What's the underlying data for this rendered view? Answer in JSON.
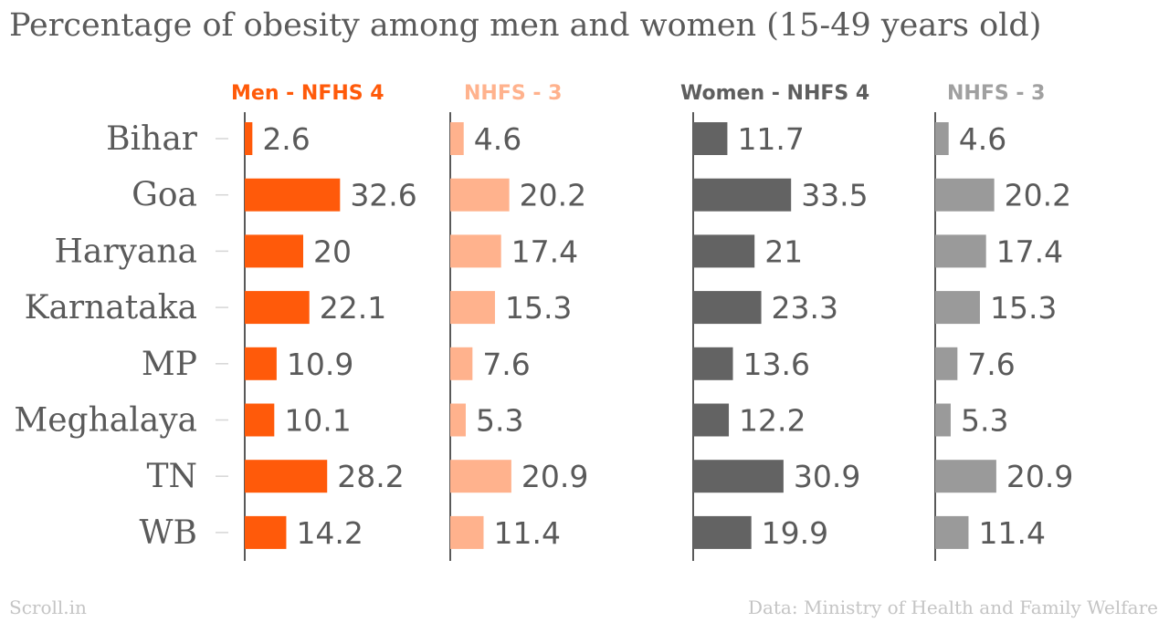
{
  "chart_data": {
    "type": "bar",
    "title": "Percentage of obesity among men and women (15-49 years old)",
    "categories": [
      "Bihar",
      "Goa",
      "Haryana",
      "Karnataka",
      "MP",
      "Meghalaya",
      "TN",
      "WB"
    ],
    "series": [
      {
        "name": "Men - NFHS 4",
        "color": "#ff5a0a",
        "values": [
          2.6,
          32.6,
          20,
          22.1,
          10.9,
          10.1,
          28.2,
          14.2
        ]
      },
      {
        "name": "NHFS - 3",
        "color": "#ffb28d",
        "values": [
          4.6,
          20.2,
          17.4,
          15.3,
          7.6,
          5.3,
          20.9,
          11.4
        ]
      },
      {
        "name": "Women - NHFS 4",
        "color": "#636363",
        "values": [
          11.7,
          33.5,
          21,
          23.3,
          13.6,
          12.2,
          30.9,
          19.9
        ]
      },
      {
        "name": "NHFS - 3",
        "color": "#9a9a9a",
        "values": [
          4.6,
          20.2,
          17.4,
          15.3,
          7.6,
          5.3,
          20.9,
          11.4
        ]
      }
    ],
    "header_colors": [
      "#ff5a0a",
      "#ffb28d",
      "#5e5e5e",
      "#a0a0a0"
    ],
    "label_color": "#5a5a5a",
    "orientation": "horizontal",
    "layout": "small-multiples",
    "grid": false,
    "legend": "column headers"
  },
  "footer": {
    "brand": "Scroll.in",
    "source": "Data: Ministry of Health and Family Welfare"
  }
}
